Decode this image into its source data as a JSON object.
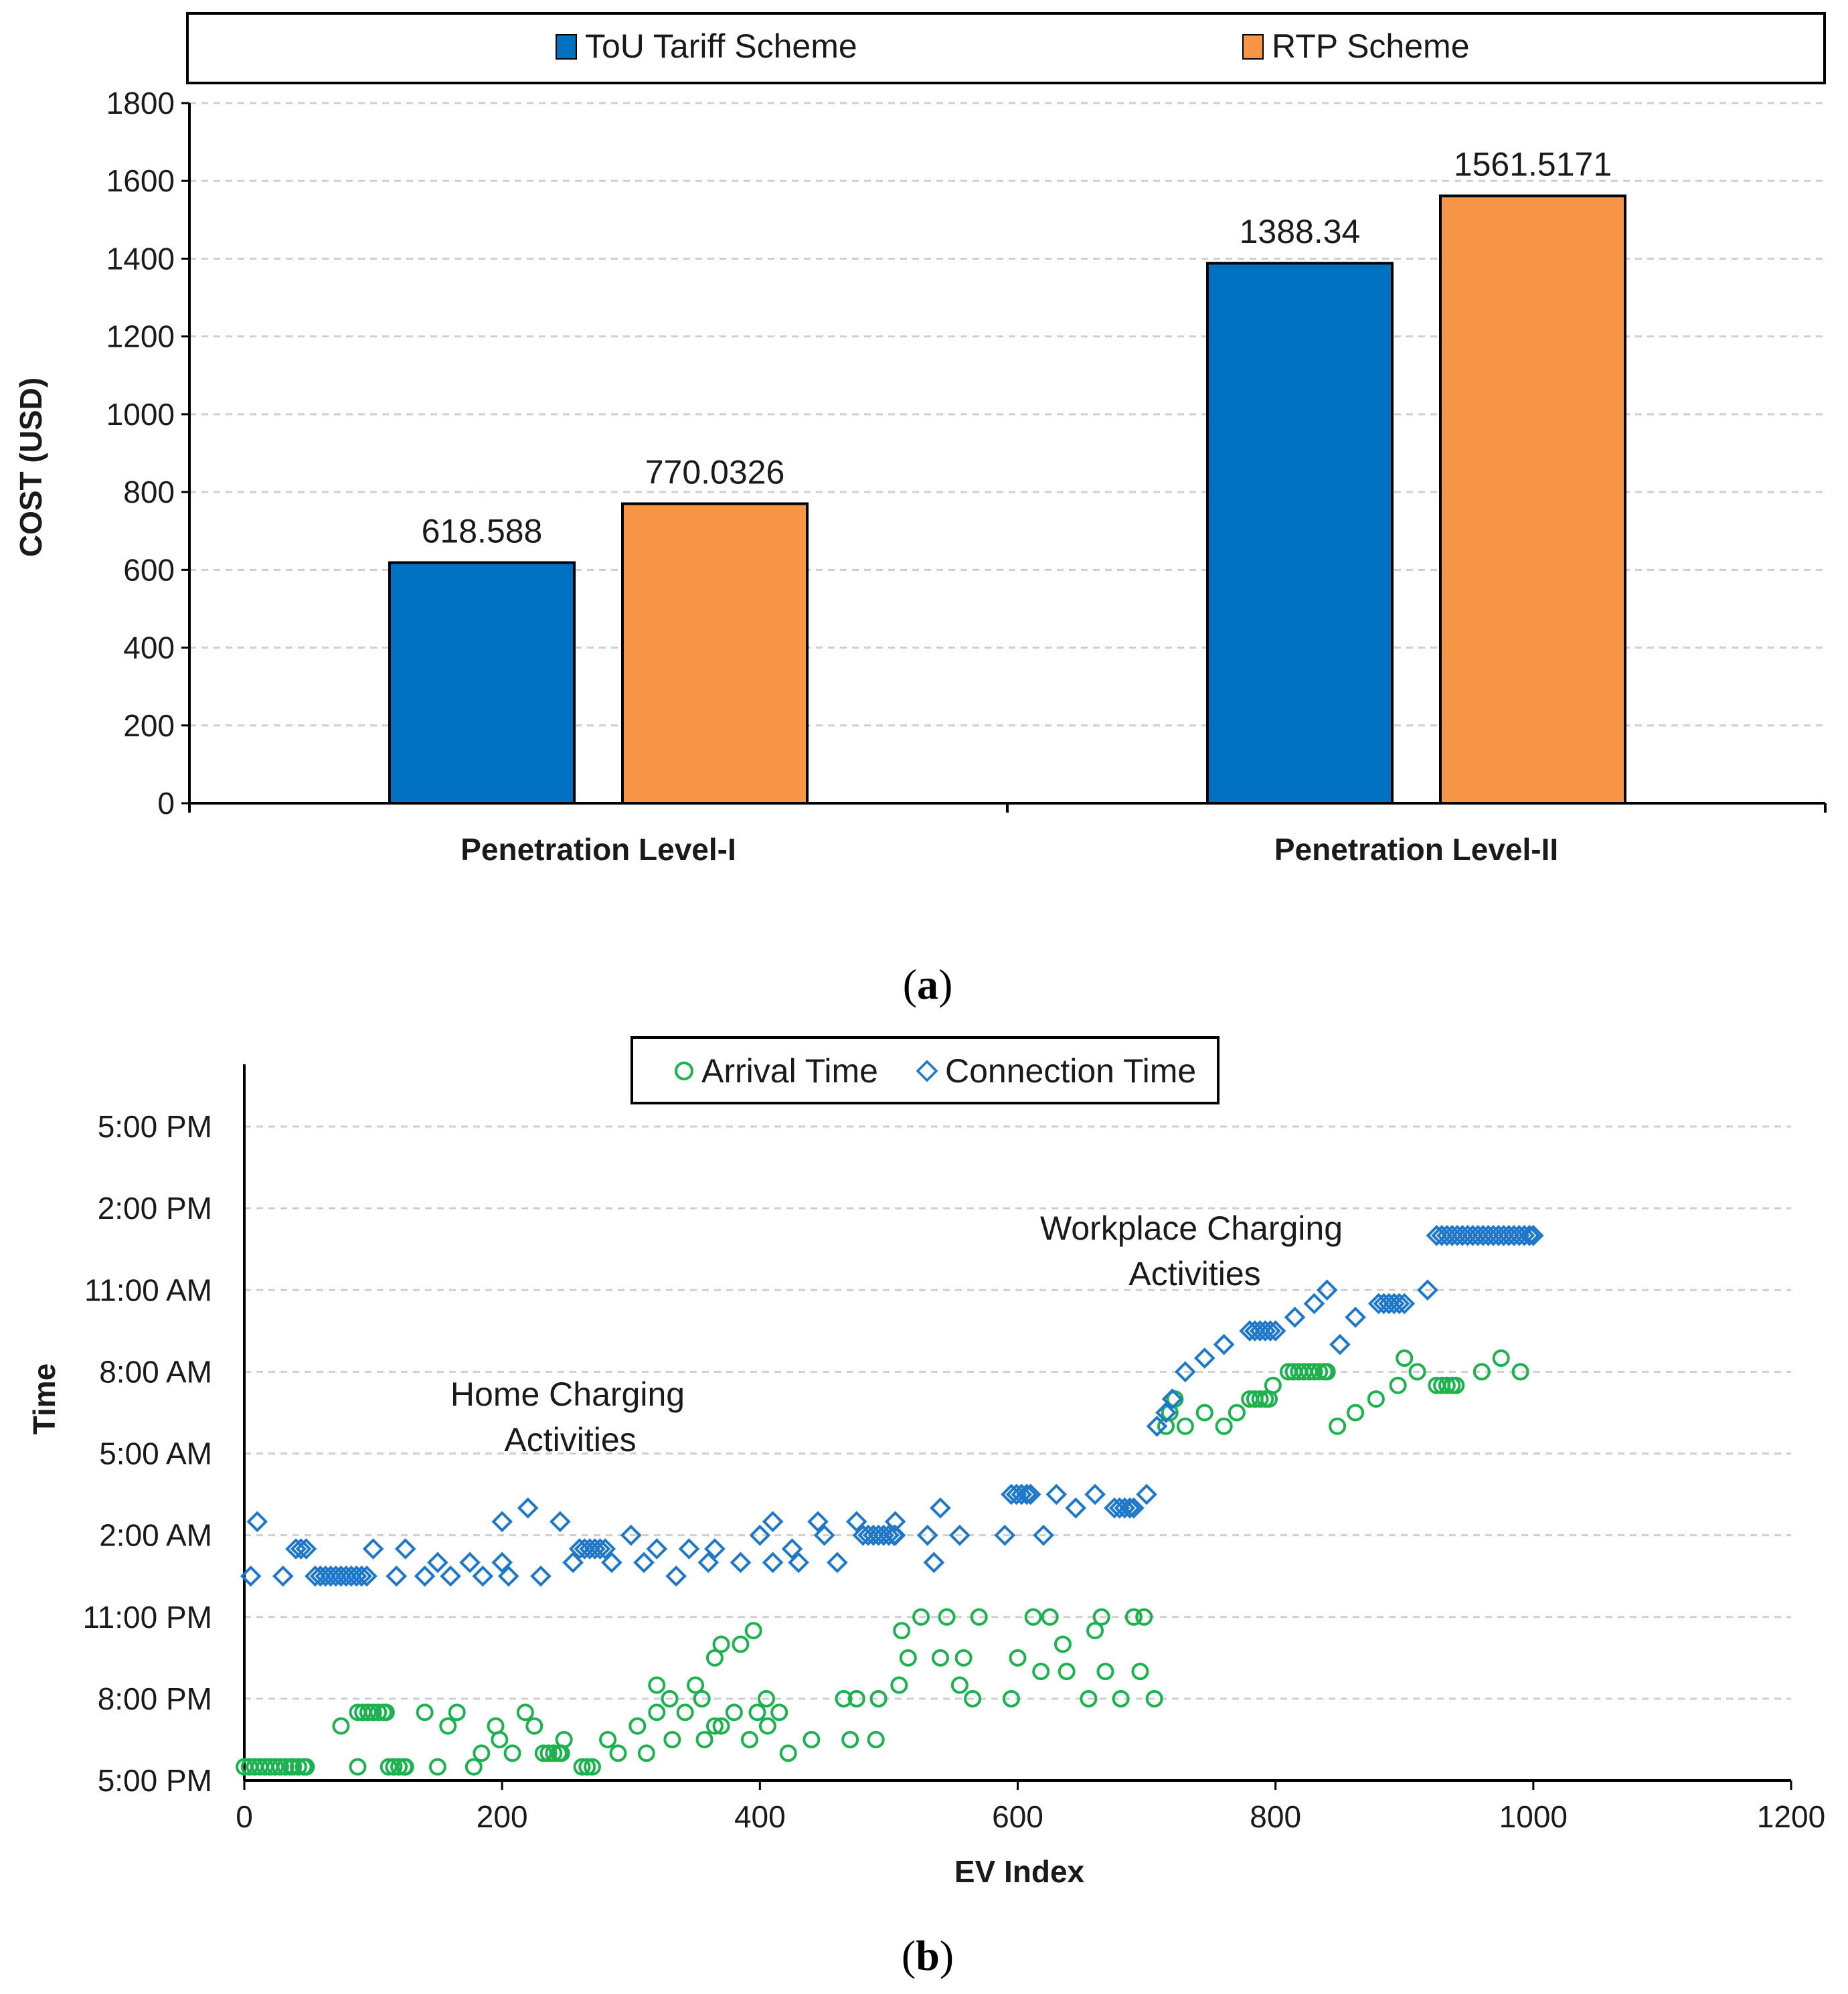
{
  "colors": {
    "tou": "#0070C0",
    "rtp": "#F79646",
    "arrival": "#1EB150",
    "connection": "#1F77C9"
  },
  "panel_a_label": "a",
  "panel_b_label": "b",
  "chart_data": [
    {
      "type": "bar",
      "categories": [
        "Penetration Level-I",
        "Penetration Level-II"
      ],
      "series": [
        {
          "name": "ToU Tariff Scheme",
          "values": [
            618.588,
            1388.34
          ],
          "labels": [
            "618.588",
            "1388.34"
          ]
        },
        {
          "name": "RTP Scheme",
          "values": [
            770.0326,
            1561.5171
          ],
          "labels": [
            "770.0326",
            "1561.5171"
          ]
        }
      ],
      "ylabel": "COST (USD)",
      "ylim": [
        0,
        1800
      ],
      "yticks": [
        "0",
        "200",
        "400",
        "600",
        "800",
        "1000",
        "1200",
        "1400",
        "1600",
        "1800"
      ],
      "grid": true,
      "legend": "top"
    },
    {
      "type": "scatter",
      "xlabel": "EV Index",
      "ylabel": "Time",
      "xlim": [
        0,
        1200
      ],
      "xticks": [
        "0",
        "200",
        "400",
        "600",
        "800",
        "1000",
        "1200"
      ],
      "yticks": [
        "5:00 PM",
        "8:00 PM",
        "11:00 PM",
        "2:00 AM",
        "5:00 AM",
        "8:00 AM",
        "11:00 AM",
        "2:00 PM",
        "5:00 PM"
      ],
      "y_unit": "hours after 5:00 PM",
      "ylim": [
        0,
        24
      ],
      "grid": true,
      "legend": "top",
      "annotations": [
        {
          "line1": "Home Charging",
          "line2": "Activities"
        },
        {
          "line1": "Workplace Charging",
          "line2": "Activities"
        }
      ],
      "series": [
        {
          "name": "Arrival Time",
          "marker": "circle",
          "points": [
            [
              0,
              0.5
            ],
            [
              8,
              0.5
            ],
            [
              38,
              0.5
            ],
            [
              48,
              0.5
            ],
            [
              88,
              0.5
            ],
            [
              112,
              0.5
            ],
            [
              125,
              0.5
            ],
            [
              150,
              0.5
            ],
            [
              178,
              0.5
            ],
            [
              184,
              1
            ],
            [
              198,
              1.5
            ],
            [
              208,
              1
            ],
            [
              232,
              1
            ],
            [
              246,
              1
            ],
            [
              262,
              0.5
            ],
            [
              270,
              0.5
            ],
            [
              290,
              1
            ],
            [
              312,
              1
            ],
            [
              332,
              1.5
            ],
            [
              357,
              1.5
            ],
            [
              370,
              2
            ],
            [
              392,
              1.5
            ],
            [
              406,
              2
            ],
            [
              422,
              1
            ],
            [
              440,
              1.5
            ],
            [
              470,
              1.5
            ],
            [
              490,
              1.5
            ],
            [
              75,
              2
            ],
            [
              88,
              2.5
            ],
            [
              110,
              2.5
            ],
            [
              140,
              2.5
            ],
            [
              158,
              2
            ],
            [
              165,
              2.5
            ],
            [
              195,
              2
            ],
            [
              218,
              2.5
            ],
            [
              225,
              2
            ],
            [
              248,
              1.5
            ],
            [
              282,
              1.5
            ],
            [
              305,
              2
            ],
            [
              320,
              2.5
            ],
            [
              330,
              3
            ],
            [
              342,
              2.5
            ],
            [
              355,
              3
            ],
            [
              365,
              2
            ],
            [
              380,
              2.5
            ],
            [
              398,
              2.5
            ],
            [
              405,
              3
            ],
            [
              415,
              2.5
            ],
            [
              465,
              3
            ],
            [
              475,
              3
            ],
            [
              492,
              3
            ],
            [
              508,
              3.5
            ],
            [
              320,
              3.5
            ],
            [
              350,
              3.5
            ],
            [
              365,
              4.5
            ],
            [
              370,
              5
            ],
            [
              385,
              5
            ],
            [
              395,
              5.5
            ],
            [
              515,
              4.5
            ],
            [
              540,
              4.5
            ],
            [
              555,
              3.5
            ],
            [
              565,
              3
            ],
            [
              595,
              3
            ],
            [
              618,
              4
            ],
            [
              638,
              4
            ],
            [
              655,
              3
            ],
            [
              668,
              4
            ],
            [
              680,
              3
            ],
            [
              695,
              4
            ],
            [
              706,
              3
            ],
            [
              510,
              5.5
            ],
            [
              525,
              6
            ],
            [
              545,
              6
            ],
            [
              558,
              4.5
            ],
            [
              570,
              6
            ],
            [
              600,
              4.5
            ],
            [
              612,
              6
            ],
            [
              625,
              6
            ],
            [
              635,
              5
            ],
            [
              660,
              5.5
            ],
            [
              665,
              6
            ],
            [
              690,
              6
            ],
            [
              698,
              6
            ],
            [
              715,
              13
            ],
            [
              718,
              13.5
            ],
            [
              722,
              14
            ],
            [
              730,
              13
            ],
            [
              745,
              13.5
            ],
            [
              760,
              13
            ],
            [
              770,
              13.5
            ],
            [
              780,
              14
            ],
            [
              795,
              14
            ],
            [
              798,
              14.5
            ],
            [
              810,
              15
            ],
            [
              822,
              15
            ],
            [
              840,
              15
            ],
            [
              848,
              13
            ],
            [
              862,
              13.5
            ],
            [
              878,
              14
            ],
            [
              895,
              14.5
            ],
            [
              900,
              15.5
            ],
            [
              910,
              15
            ],
            [
              925,
              14.5
            ],
            [
              940,
              14.5
            ],
            [
              960,
              15
            ],
            [
              975,
              15.5
            ],
            [
              990,
              15
            ]
          ]
        },
        {
          "name": "Connection Time",
          "marker": "diamond",
          "points": [
            [
              5,
              7.5
            ],
            [
              30,
              7.5
            ],
            [
              55,
              7.5
            ],
            [
              75,
              7.5
            ],
            [
              95,
              7.5
            ],
            [
              118,
              7.5
            ],
            [
              140,
              7.5
            ],
            [
              160,
              7.5
            ],
            [
              185,
              7.5
            ],
            [
              205,
              7.5
            ],
            [
              230,
              7.5
            ],
            [
              255,
              8
            ],
            [
              285,
              8
            ],
            [
              310,
              8
            ],
            [
              335,
              7.5
            ],
            [
              360,
              8
            ],
            [
              385,
              8
            ],
            [
              410,
              8
            ],
            [
              430,
              8
            ],
            [
              460,
              8
            ],
            [
              40,
              8.5
            ],
            [
              48,
              8.5
            ],
            [
              100,
              8.5
            ],
            [
              125,
              8.5
            ],
            [
              150,
              8
            ],
            [
              175,
              8
            ],
            [
              200,
              8
            ],
            [
              260,
              8.5
            ],
            [
              280,
              8.5
            ],
            [
              300,
              9
            ],
            [
              320,
              8.5
            ],
            [
              345,
              8.5
            ],
            [
              365,
              8.5
            ],
            [
              400,
              9
            ],
            [
              425,
              8.5
            ],
            [
              450,
              9
            ],
            [
              480,
              9
            ],
            [
              505,
              9
            ],
            [
              530,
              9
            ],
            [
              555,
              9
            ],
            [
              590,
              9
            ],
            [
              620,
              9
            ],
            [
              10,
              9.5
            ],
            [
              200,
              9.5
            ],
            [
              220,
              10
            ],
            [
              245,
              9.5
            ],
            [
              410,
              9.5
            ],
            [
              445,
              9.5
            ],
            [
              475,
              9.5
            ],
            [
              505,
              9.5
            ],
            [
              540,
              10
            ],
            [
              535,
              8
            ],
            [
              595,
              10.5
            ],
            [
              610,
              10.5
            ],
            [
              630,
              10.5
            ],
            [
              645,
              10
            ],
            [
              660,
              10.5
            ],
            [
              675,
              10
            ],
            [
              690,
              10
            ],
            [
              700,
              10.5
            ],
            [
              708,
              13
            ],
            [
              715,
              13.5
            ],
            [
              720,
              14
            ],
            [
              730,
              15
            ],
            [
              745,
              15.5
            ],
            [
              760,
              16
            ],
            [
              780,
              16.5
            ],
            [
              800,
              16.5
            ],
            [
              815,
              17
            ],
            [
              830,
              17.5
            ],
            [
              840,
              18
            ],
            [
              850,
              16
            ],
            [
              862,
              17
            ],
            [
              880,
              17.5
            ],
            [
              900,
              17.5
            ],
            [
              918,
              18
            ],
            [
              925,
              20
            ],
            [
              945,
              20
            ],
            [
              965,
              20
            ],
            [
              985,
              20
            ],
            [
              1000,
              20
            ]
          ]
        }
      ]
    }
  ]
}
